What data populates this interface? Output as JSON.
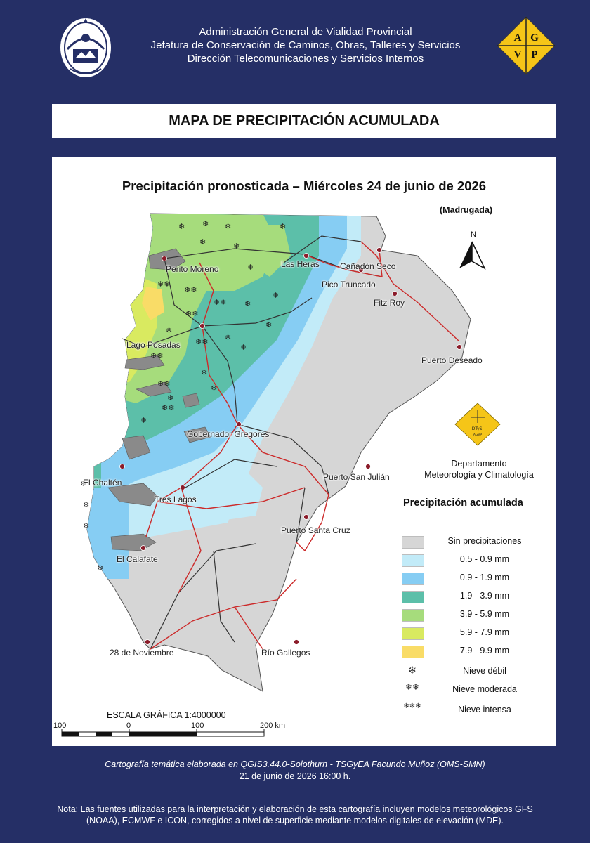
{
  "header": {
    "line1": "Administración General de Vialidad Provincial",
    "line2": "Jefatura de Conservación de Caminos, Obras, Talleres y Servicios",
    "line3": "Dirección Telecomunicaciones y Servicios Internos",
    "logo_right_letters": [
      "A",
      "G",
      "V",
      "P"
    ],
    "logo_right_color": "#f5c518"
  },
  "title": "MAPA DE PRECIPITACIÓN ACUMULADA",
  "map": {
    "subtitle": "Precipitación pronosticada – Miércoles 24 de junio de 2026",
    "period": "(Madrugada)",
    "north_label": "N",
    "cities": [
      {
        "name": "Perito Moreno"
      },
      {
        "name": "Las Heras"
      },
      {
        "name": "Cañadón Seco"
      },
      {
        "name": "Pico Truncado"
      },
      {
        "name": "Fitz Roy"
      },
      {
        "name": "Lago Posadas"
      },
      {
        "name": "Puerto Deseado"
      },
      {
        "name": "Gobernador Gregores"
      },
      {
        "name": "El Chaltén"
      },
      {
        "name": "Puerto San Julián"
      },
      {
        "name": "Tres Lagos"
      },
      {
        "name": "Puerto Santa Cruz"
      },
      {
        "name": "El Calafate"
      },
      {
        "name": "28 de Noviembre"
      },
      {
        "name": "Río Gallegos"
      }
    ],
    "dept_logo_text": [
      "DTySI",
      "AGVP"
    ],
    "dept_line1": "Departamento",
    "dept_line2": "Meteorología y Climatología",
    "legend": {
      "title": "Precipitación acumulada",
      "items": [
        {
          "label": "Sin precipitaciones",
          "color": "#d6d6d6"
        },
        {
          "label": "0.5 - 0.9 mm",
          "color": "#c2ebf8"
        },
        {
          "label": "0.9 - 1.9 mm",
          "color": "#86cdf3"
        },
        {
          "label": "1.9 - 3.9 mm",
          "color": "#5cbfa9"
        },
        {
          "label": "3.9 - 5.9 mm",
          "color": "#a6dc7c"
        },
        {
          "label": "5.9 - 7.9 mm",
          "color": "#d9ea60"
        },
        {
          "label": "7.9 - 9.9 mm",
          "color": "#f9dc67"
        }
      ],
      "snow": [
        {
          "label": "Nieve débil",
          "symbol": "❄"
        },
        {
          "label": "Nieve moderada",
          "symbol": "❄❄"
        },
        {
          "label": "Nieve intensa",
          "symbol": "❄❄❄"
        }
      ]
    },
    "scale": {
      "title": "ESCALA GRÁFICA 1:4000000",
      "ticks": [
        "100",
        "0",
        "100",
        "200 km"
      ]
    }
  },
  "footer": {
    "credit": "Cartografía temática elaborada en QGIS3.44.0-Solothurn - TSGyEA Facundo Muñoz (OMS-SMN)",
    "date": "21 de junio de 2026 16:00 h.",
    "note": "Nota: Las fuentes utilizadas para la interpretación y elaboración de esta cartografía incluyen modelos meteorológicos GFS (NOAA), ECMWF e ICON, corregidos a nivel de superficie mediante modelos digitales de elevación (MDE)."
  }
}
